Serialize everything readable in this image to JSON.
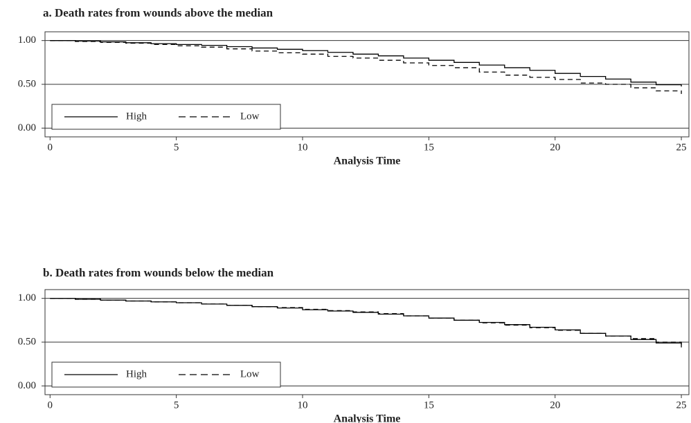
{
  "chart_data": [
    {
      "type": "step",
      "title": "a. Death rates from wounds above the median",
      "x_label": "Analysis Time",
      "x": [
        0,
        1,
        2,
        3,
        4,
        5,
        6,
        7,
        8,
        9,
        10,
        11,
        12,
        13,
        14,
        15,
        16,
        17,
        18,
        19,
        20,
        21,
        22,
        23,
        24,
        25
      ],
      "series": [
        {
          "name": "High",
          "color": "#000000",
          "style": "solid",
          "values": [
            1.0,
            0.995,
            0.985,
            0.975,
            0.965,
            0.955,
            0.945,
            0.93,
            0.915,
            0.9,
            0.885,
            0.865,
            0.845,
            0.825,
            0.8,
            0.775,
            0.75,
            0.72,
            0.69,
            0.66,
            0.625,
            0.59,
            0.56,
            0.525,
            0.495,
            0.475
          ]
        },
        {
          "name": "Low",
          "color": "#000000",
          "style": "dashed",
          "values": [
            1.0,
            0.99,
            0.98,
            0.97,
            0.955,
            0.94,
            0.925,
            0.905,
            0.88,
            0.86,
            0.845,
            0.82,
            0.8,
            0.775,
            0.745,
            0.715,
            0.69,
            0.64,
            0.605,
            0.58,
            0.555,
            0.515,
            0.5,
            0.46,
            0.425,
            0.39
          ]
        }
      ],
      "xlim": [
        -0.2,
        25.3
      ],
      "xticks": [
        0,
        5,
        10,
        15,
        20,
        25
      ],
      "ylim": [
        -0.1,
        1.1
      ],
      "yticks": [
        {
          "value": 0,
          "label": "0.00"
        },
        {
          "value": 0.5,
          "label": "0.50"
        },
        {
          "value": 1,
          "label": "1.00"
        }
      ],
      "grid": true,
      "legend": "lower left"
    },
    {
      "type": "step",
      "title": "b. Death rates from wounds below the median",
      "x_label": "Analysis Time",
      "x": [
        0,
        1,
        2,
        3,
        4,
        5,
        6,
        7,
        8,
        9,
        10,
        11,
        12,
        13,
        14,
        15,
        16,
        17,
        18,
        19,
        20,
        21,
        22,
        23,
        24,
        25
      ],
      "series": [
        {
          "name": "High",
          "color": "#000000",
          "style": "solid",
          "values": [
            1.0,
            0.99,
            0.98,
            0.97,
            0.96,
            0.95,
            0.935,
            0.92,
            0.905,
            0.89,
            0.87,
            0.855,
            0.84,
            0.82,
            0.8,
            0.775,
            0.75,
            0.725,
            0.7,
            0.67,
            0.64,
            0.6,
            0.57,
            0.53,
            0.49,
            0.44
          ]
        },
        {
          "name": "Low",
          "color": "#000000",
          "style": "dashed",
          "values": [
            1.0,
            0.99,
            0.98,
            0.97,
            0.96,
            0.95,
            0.935,
            0.92,
            0.905,
            0.895,
            0.875,
            0.86,
            0.845,
            0.825,
            0.8,
            0.775,
            0.75,
            0.72,
            0.695,
            0.665,
            0.635,
            0.6,
            0.57,
            0.54,
            0.5,
            0.47
          ]
        }
      ],
      "xlim": [
        -0.2,
        25.3
      ],
      "xticks": [
        0,
        5,
        10,
        15,
        20,
        25
      ],
      "ylim": [
        -0.1,
        1.1
      ],
      "yticks": [
        {
          "value": 0,
          "label": "0.00"
        },
        {
          "value": 0.5,
          "label": "0.50"
        },
        {
          "value": 1,
          "label": "1.00"
        }
      ],
      "grid": true,
      "legend": "lower left"
    }
  ]
}
